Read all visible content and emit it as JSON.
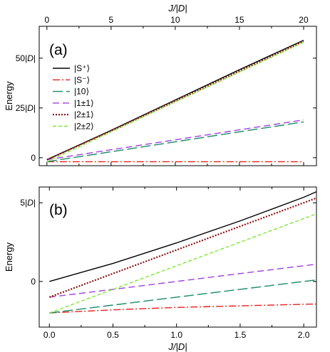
{
  "chart_data": [
    {
      "panel": "(a)",
      "type": "line",
      "xlabel_top": "J/|D|",
      "ylabel": "Energy",
      "xlim": [
        -0.6,
        21.0
      ],
      "ylim": [
        -4,
        66
      ],
      "x_ticks": [
        "0",
        "5",
        "10",
        "15",
        "20"
      ],
      "x_tick_values": [
        0,
        5,
        10,
        15,
        20
      ],
      "y_ticks": [
        "0",
        "25|D|",
        "50|D|"
      ],
      "y_tick_values": [
        0,
        25,
        50
      ],
      "legend_position": "upper-left",
      "series": [
        {
          "name": "|S⁺⟩",
          "color": "#000000",
          "dash": "solid",
          "x": [
            0,
            5,
            10,
            15,
            20
          ],
          "y": [
            -1.0,
            13.8,
            29.0,
            44.2,
            59.0
          ]
        },
        {
          "name": "|S⁻⟩",
          "color": "#e8201c",
          "dash": "dashdot",
          "x": [
            0,
            5,
            10,
            15,
            20
          ],
          "y": [
            -2.0,
            -2.0,
            -2.0,
            -2.0,
            -2.0
          ]
        },
        {
          "name": "|10⟩",
          "color": "#1a8a6a",
          "dash": "longdash",
          "x": [
            0,
            5,
            10,
            15,
            20
          ],
          "y": [
            -2.0,
            3.0,
            8.0,
            13.0,
            18.0
          ]
        },
        {
          "name": "|1±1⟩",
          "color": "#a040e0",
          "dash": "dash",
          "x": [
            0,
            5,
            10,
            15,
            20
          ],
          "y": [
            -1.0,
            4.0,
            9.0,
            14.0,
            19.0
          ]
        },
        {
          "name": "|2±1⟩",
          "color": "#8b1010",
          "dash": "dot",
          "x": [
            0,
            5,
            10,
            15,
            20
          ],
          "y": [
            -1.0,
            13.5,
            28.5,
            43.5,
            58.5
          ]
        },
        {
          "name": "|2±2⟩",
          "color": "#7ee830",
          "dash": "shortdash",
          "x": [
            0,
            5,
            10,
            15,
            20
          ],
          "y": [
            -2.0,
            13.0,
            28.0,
            43.0,
            58.0
          ]
        }
      ]
    },
    {
      "panel": "(b)",
      "type": "line",
      "xlabel": "J/|D|",
      "ylabel": "Energy",
      "xlim": [
        -0.08,
        2.1
      ],
      "ylim": [
        -2.9,
        6.0
      ],
      "x_ticks": [
        "0.0",
        "0.5",
        "1.0",
        "1.5",
        "2.0"
      ],
      "x_tick_values": [
        0,
        0.5,
        1.0,
        1.5,
        2.0
      ],
      "y_ticks": [
        "0",
        "5|D|"
      ],
      "y_tick_values": [
        0,
        5
      ],
      "series": [
        {
          "name": "|S⁺⟩",
          "color": "#000000",
          "dash": "solid",
          "x": [
            0,
            0.5,
            1.0,
            1.5,
            2.0,
            2.1
          ],
          "y": [
            0.0,
            1.15,
            2.45,
            3.85,
            5.35,
            5.7
          ]
        },
        {
          "name": "|S⁻⟩",
          "color": "#e8201c",
          "dash": "dashdot",
          "x": [
            0,
            0.5,
            1.0,
            1.5,
            2.0,
            2.1
          ],
          "y": [
            -2.0,
            -1.8,
            -1.65,
            -1.55,
            -1.45,
            -1.43
          ]
        },
        {
          "name": "|10⟩",
          "color": "#1a8a6a",
          "dash": "longdash",
          "x": [
            0,
            0.5,
            1.0,
            1.5,
            2.0,
            2.1
          ],
          "y": [
            -2.0,
            -1.5,
            -1.0,
            -0.5,
            0.0,
            0.1
          ]
        },
        {
          "name": "|1±1⟩",
          "color": "#a040e0",
          "dash": "dash",
          "x": [
            0,
            0.5,
            1.0,
            1.5,
            2.0,
            2.1
          ],
          "y": [
            -1.0,
            -0.5,
            0.0,
            0.5,
            1.0,
            1.1
          ]
        },
        {
          "name": "|2±1⟩",
          "color": "#8b1010",
          "dash": "dot",
          "x": [
            0,
            0.5,
            1.0,
            1.5,
            2.0,
            2.1
          ],
          "y": [
            -1.0,
            0.5,
            2.0,
            3.5,
            5.0,
            5.3
          ]
        },
        {
          "name": "|2±2⟩",
          "color": "#7ee830",
          "dash": "shortdash",
          "x": [
            0,
            0.5,
            1.0,
            1.5,
            2.0,
            2.1
          ],
          "y": [
            -2.0,
            -0.5,
            1.0,
            2.5,
            4.0,
            4.3
          ]
        }
      ]
    }
  ]
}
